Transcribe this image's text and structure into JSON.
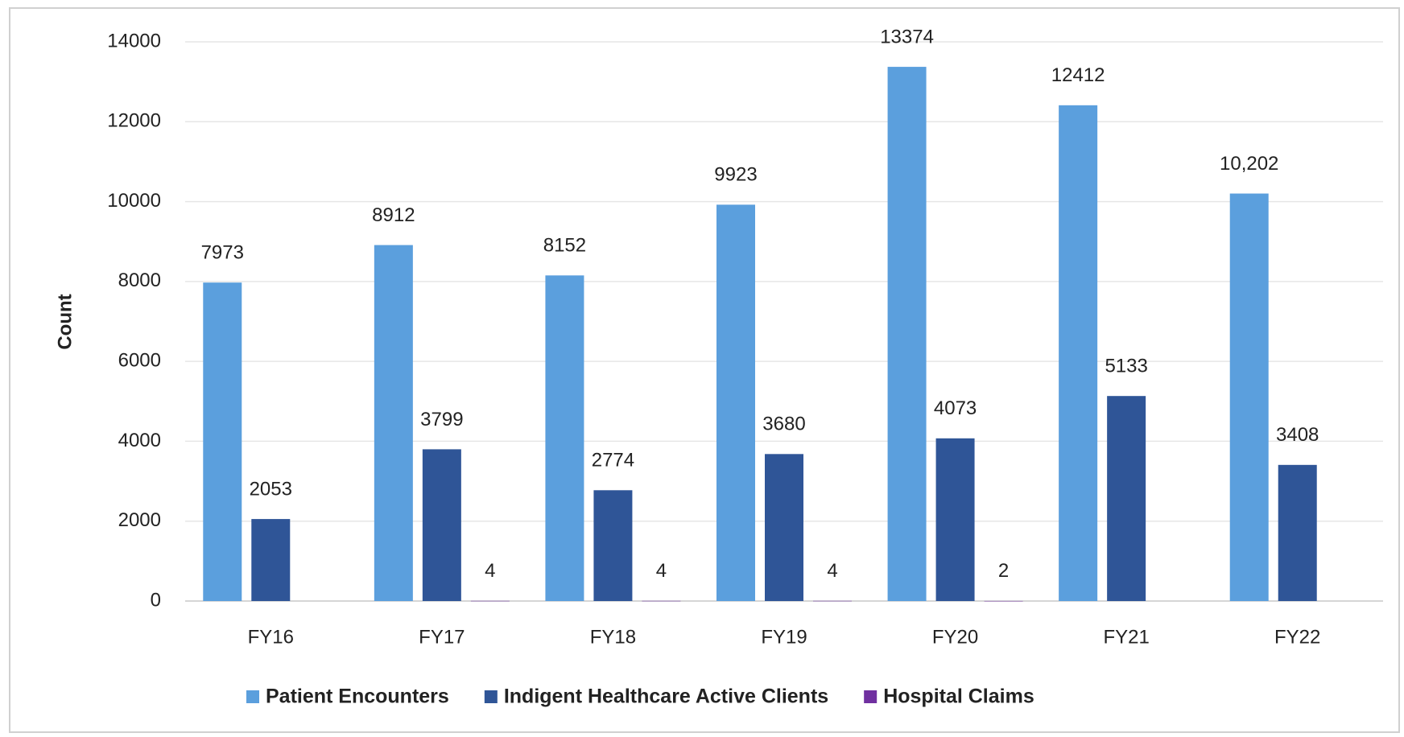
{
  "chart_data": {
    "type": "bar",
    "y_label": "Count",
    "categories": [
      "FY16",
      "FY17",
      "FY18",
      "FY19",
      "FY20",
      "FY21",
      "FY22"
    ],
    "series": [
      {
        "name": "Patient Encounters",
        "color": "#5b9fdd",
        "values": [
          7973,
          8912,
          8152,
          9923,
          13374,
          12412,
          10202
        ],
        "value_labels": [
          "7973",
          "8912",
          "8152",
          "9923",
          "13374",
          "12412",
          "10,202"
        ]
      },
      {
        "name": "Indigent Healthcare Active Clients",
        "color": "#2f5597",
        "values": [
          2053,
          3799,
          2774,
          3680,
          4073,
          5133,
          3408
        ]
      },
      {
        "name": "Hospital Claims",
        "color": "#7030a0",
        "values": [
          null,
          4,
          4,
          4,
          2,
          null,
          null
        ]
      }
    ],
    "ylim": [
      0,
      14000
    ],
    "yticks": [
      0,
      2000,
      4000,
      6000,
      8000,
      10000,
      12000,
      14000
    ],
    "grid": true
  }
}
